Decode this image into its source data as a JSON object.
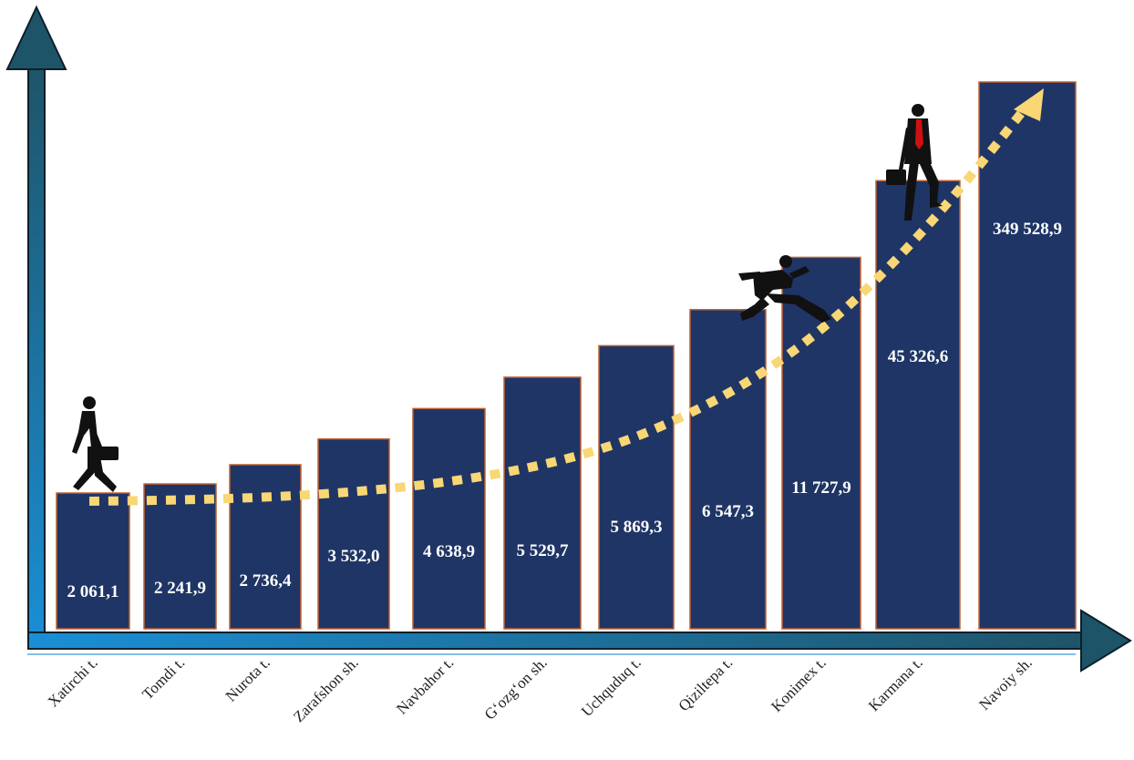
{
  "chart_data": {
    "type": "bar",
    "categories": [
      "Xatirchi t.",
      "Tomdi t.",
      "Nurota t.",
      "Zarafshon sh.",
      "Navbahor t.",
      "G‘ozg‘on sh.",
      "Uchquduq t.",
      "Qiziltepa t.",
      "Konimex t.",
      "Karmana t.",
      "Navoiy sh."
    ],
    "values": [
      2061.1,
      2241.9,
      2736.4,
      3532.0,
      4638.9,
      5529.7,
      5869.3,
      6547.3,
      11727.9,
      45326.6,
      349528.9
    ],
    "value_labels": [
      "2 061,1",
      "2 241,9",
      "2 736,4",
      "3 532,0",
      "4 638,9",
      "5 529,7",
      "5 869,3",
      "6 547,3",
      "11 727,9",
      "45 326,6",
      "349 528,9"
    ],
    "scale": "non-linear (ranked steps)",
    "title": "",
    "xlabel": "",
    "ylabel": "",
    "grid": false,
    "legend": "none",
    "trend": "dotted rising arrow"
  },
  "colors": {
    "bar_fill": "#1f3566",
    "bar_stroke": "#c0622f",
    "axis_dark": "#1e5468",
    "axis_light": "#1a8fd6",
    "trend": "#f8d774",
    "label": "#ffffff",
    "category_text": "#222222",
    "baseline_line": "#5aa9e0"
  },
  "icons": {
    "walker": "walking-businessman-icon",
    "jumper": "leaping-businessman-icon",
    "climber": "climbing-businessman-icon"
  }
}
